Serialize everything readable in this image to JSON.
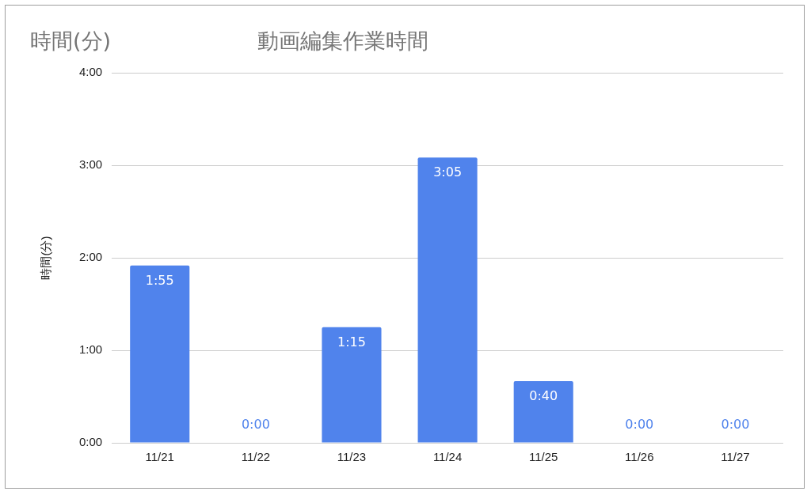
{
  "chart_data": {
    "type": "bar",
    "title": "動画編集作業時間",
    "annotations": [
      "時間(分)"
    ],
    "ylabel": "時間(分)",
    "categories": [
      "11/21",
      "11/22",
      "11/23",
      "11/24",
      "11/25",
      "11/26",
      "11/27"
    ],
    "values": [
      115,
      0,
      75,
      185,
      40,
      0,
      0
    ],
    "value_labels": [
      "1:55",
      "0:00",
      "1:15",
      "3:05",
      "0:40",
      "0:00",
      "0:00"
    ],
    "color": "#5083ec",
    "ylim": [
      0,
      240
    ],
    "yticks": [
      {
        "value": 0,
        "label": "0:00"
      },
      {
        "value": 60,
        "label": "1:00"
      },
      {
        "value": 120,
        "label": "2:00"
      },
      {
        "value": 180,
        "label": "3:00"
      },
      {
        "value": 240,
        "label": "4:00"
      }
    ],
    "grid": "y",
    "legend": false
  }
}
